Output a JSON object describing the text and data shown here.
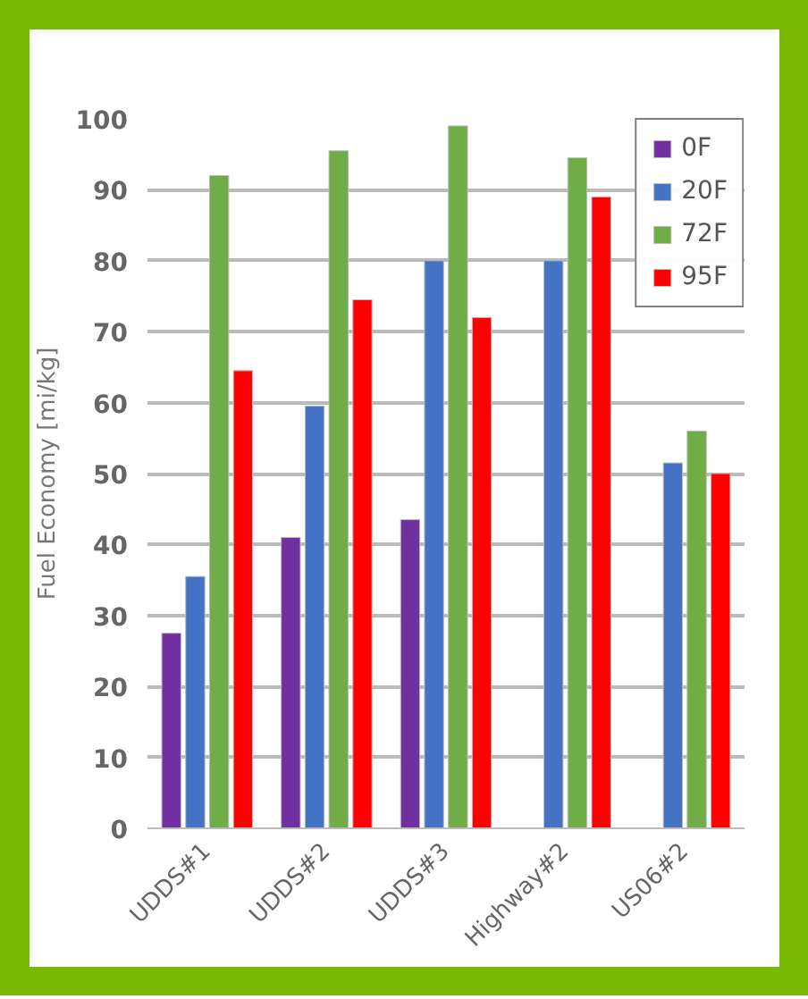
{
  "chart_data": {
    "type": "bar",
    "ylabel": "Fuel Economy [mi/kg]",
    "categories": [
      "UDDS#1",
      "UDDS#2",
      "UDDS#3",
      "Highway#2",
      "US06#2"
    ],
    "series": [
      {
        "name": "0F",
        "color": "#7030a0",
        "values": [
          27.5,
          41,
          43.5,
          null,
          null
        ]
      },
      {
        "name": "20F",
        "color": "#4472c4",
        "values": [
          35.5,
          59.5,
          80,
          80,
          51.5
        ]
      },
      {
        "name": "72F",
        "color": "#70ad47",
        "values": [
          92,
          95.5,
          99,
          94.5,
          56
        ]
      },
      {
        "name": "95F",
        "color": "#ff0000",
        "values": [
          64.5,
          74.5,
          72,
          89,
          50
        ]
      }
    ],
    "ylim": [
      0,
      100
    ],
    "yticks": [
      0,
      10,
      20,
      30,
      40,
      50,
      60,
      70,
      80,
      90,
      100
    ],
    "grid": "y",
    "legend": "top right"
  }
}
